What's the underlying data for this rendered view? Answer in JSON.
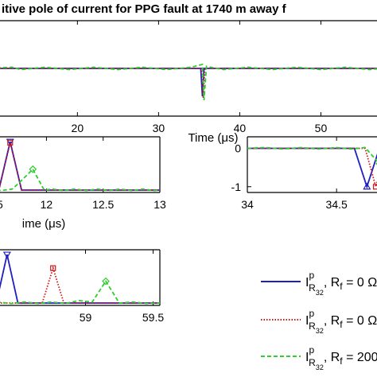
{
  "title": "itive pole of current for PPG fault at 1740 m away f",
  "colors": {
    "s1": "#1f1fbf",
    "s2": "#d01515",
    "s3": "#2ecc2e"
  },
  "legend": {
    "items": [
      {
        "base": "I",
        "sup": "p",
        "sub1": "R",
        "sub2": "32",
        "tail": ", R",
        "tailsub": "f",
        "tail2": " = 0 Ω"
      },
      {
        "base": "I",
        "sup": "p",
        "sub1": "R",
        "sub2": "32",
        "tail": ", R",
        "tailsub": "f",
        "tail2": " = 0 Ω,"
      },
      {
        "base": "I",
        "sup": "p",
        "sub1": "R",
        "sub2": "32",
        "tail": ", R",
        "tailsub": "f",
        "tail2": " = 200"
      }
    ]
  },
  "chart_data": [
    {
      "id": "top",
      "type": "line",
      "xlabel": "Time (μs)",
      "xlim": [
        8.5,
        57.5
      ],
      "ylim": [
        -1.2,
        1.2
      ],
      "xticks": [
        20,
        30,
        40,
        50
      ],
      "series": [
        {
          "style": "solid",
          "x": [
            8.5,
            35.2,
            35.4,
            35.6,
            57.5
          ],
          "y": [
            0,
            0,
            -0.7,
            0,
            0
          ]
        },
        {
          "style": "dotted",
          "x": [
            8.5,
            35.3,
            35.5,
            35.7,
            57.5
          ],
          "y": [
            0,
            0,
            -0.75,
            0,
            0
          ]
        },
        {
          "style": "dashed",
          "x": [
            8.5,
            12,
            13,
            16,
            19,
            22,
            25,
            28,
            31,
            34,
            35.4,
            35.6,
            35.9,
            38,
            41,
            44,
            47,
            50,
            53,
            56,
            57.5
          ],
          "y": [
            0,
            0.03,
            -0.03,
            0.03,
            -0.03,
            0.03,
            -0.03,
            0.03,
            -0.03,
            0.03,
            0.1,
            -0.8,
            0.05,
            -0.03,
            0.03,
            -0.03,
            0.03,
            -0.03,
            0.03,
            -0.03,
            0
          ]
        }
      ]
    },
    {
      "id": "midleft",
      "type": "line",
      "xlabel": "ime (μs)",
      "xlim": [
        11.45,
        13
      ],
      "ylim": [
        -0.05,
        1.1
      ],
      "xticks": [
        12,
        12.5,
        13
      ],
      "xticklabels": [
        ".5",
        "12",
        "12.5",
        "13"
      ],
      "series": [
        {
          "style": "solid",
          "x": [
            11.45,
            11.58,
            11.68,
            11.78,
            13
          ],
          "y": [
            0,
            0,
            1,
            0,
            0
          ]
        },
        {
          "style": "dotted",
          "x": [
            11.45,
            11.58,
            11.68,
            11.78,
            13
          ],
          "y": [
            0,
            0,
            0.98,
            0,
            0
          ]
        },
        {
          "style": "dashed",
          "x": [
            11.45,
            11.52,
            11.6,
            11.7,
            11.78,
            11.88,
            11.98,
            12.05,
            12.15,
            12.25,
            12.35,
            12.45,
            12.55,
            12.65,
            12.75,
            12.85,
            12.95,
            13
          ],
          "y": [
            0,
            0.02,
            -0.01,
            0.02,
            0.2,
            0.43,
            0,
            0.02,
            -0.01,
            0.02,
            -0.01,
            0.02,
            -0.01,
            0.02,
            -0.01,
            0.02,
            -0.01,
            0
          ]
        }
      ]
    },
    {
      "id": "midright",
      "type": "line",
      "xlim": [
        34,
        34.78
      ],
      "ylim": [
        -1.15,
        0.3
      ],
      "xticks": [
        34,
        34.5
      ],
      "yticks": [
        0,
        -1
      ],
      "series": [
        {
          "style": "solid",
          "x": [
            34,
            34.6,
            34.67,
            34.74,
            34.78
          ],
          "y": [
            0,
            0,
            -1,
            0,
            0
          ]
        },
        {
          "style": "dotted",
          "x": [
            34,
            34.66,
            34.72,
            34.78
          ],
          "y": [
            0,
            0,
            -1,
            0
          ]
        },
        {
          "style": "dashed",
          "x": [
            34,
            34.1,
            34.2,
            34.3,
            34.4,
            34.5,
            34.58,
            34.66,
            34.74,
            34.78
          ],
          "y": [
            0,
            0.02,
            -0.02,
            0.02,
            -0.02,
            0.02,
            -0.02,
            0.02,
            -0.4,
            0
          ]
        }
      ]
    },
    {
      "id": "bottomleft",
      "type": "line",
      "xlim": [
        58.25,
        59.55
      ],
      "ylim": [
        -0.05,
        1.1
      ],
      "xticks": [
        59,
        59.5
      ],
      "series": [
        {
          "style": "solid",
          "x": [
            58.25,
            58.34,
            58.42,
            58.5,
            59.55
          ],
          "y": [
            0,
            0,
            1,
            0,
            0
          ]
        },
        {
          "style": "dotted",
          "x": [
            58.25,
            58.68,
            58.76,
            58.84,
            59.55
          ],
          "y": [
            0,
            0,
            0.72,
            0,
            0
          ]
        },
        {
          "style": "dashed",
          "x": [
            58.25,
            58.35,
            58.45,
            58.55,
            58.65,
            58.75,
            58.85,
            58.95,
            59.05,
            59.15,
            59.25,
            59.35,
            59.45,
            59.55
          ],
          "y": [
            0,
            0.02,
            -0.01,
            0.02,
            -0.01,
            0.02,
            -0.01,
            0.05,
            0.02,
            0.45,
            0,
            0.02,
            -0.01,
            0
          ]
        }
      ]
    }
  ]
}
